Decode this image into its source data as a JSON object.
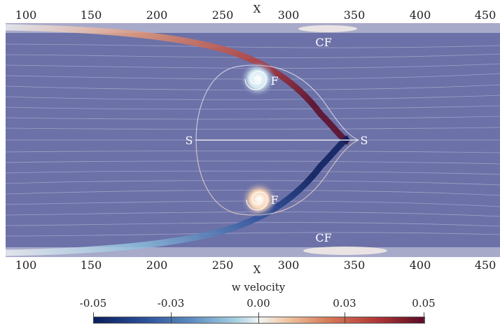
{
  "axis": {
    "x_title": "X",
    "ticks": [
      "100",
      "150",
      "200",
      "250",
      "300",
      "350",
      "400",
      "450"
    ]
  },
  "annotations": {
    "focus_top": "F",
    "focus_bottom": "F",
    "saddle_left": "S",
    "saddle_right": "S",
    "corner_flow_top": "CF",
    "corner_flow_bottom": "CF"
  },
  "colorbar": {
    "title": "w velocity",
    "ticks": [
      "-0.05",
      "-0.03",
      "0.00",
      "0.03",
      "0.05"
    ],
    "range": [
      -0.05,
      0.05
    ]
  },
  "colors": {
    "background_field": "#6c71a8",
    "positive": "#b23a38",
    "negative": "#2b4f9a",
    "neutral": "#f2f4f4"
  }
}
